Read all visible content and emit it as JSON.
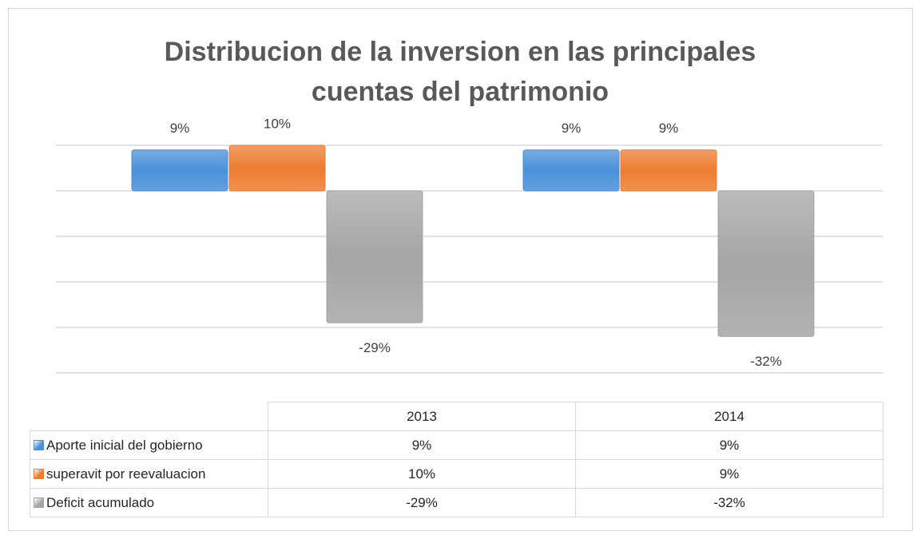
{
  "chart_data": {
    "type": "bar",
    "title": "Distribucion de la inversion en las principales cuentas del patrimonio",
    "categories": [
      "2013",
      "2014"
    ],
    "series": [
      {
        "name": "Aporte inicial del gobierno",
        "color": "#4a90d9",
        "values": [
          9,
          9
        ],
        "value_labels": [
          "9%",
          "9%"
        ]
      },
      {
        "name": "superavit por reevaluacion",
        "color": "#ed7d31",
        "values": [
          10,
          9
        ],
        "value_labels": [
          "10%",
          "9%"
        ]
      },
      {
        "name": "Deficit acumulado",
        "color": "#a5a5a5",
        "values": [
          -29,
          -32
        ],
        "value_labels": [
          "-29%",
          "-32%"
        ]
      }
    ],
    "ylim": [
      -40,
      10
    ],
    "yticks": [
      -40,
      -30,
      -20,
      -10,
      0,
      10
    ],
    "grid": true
  }
}
